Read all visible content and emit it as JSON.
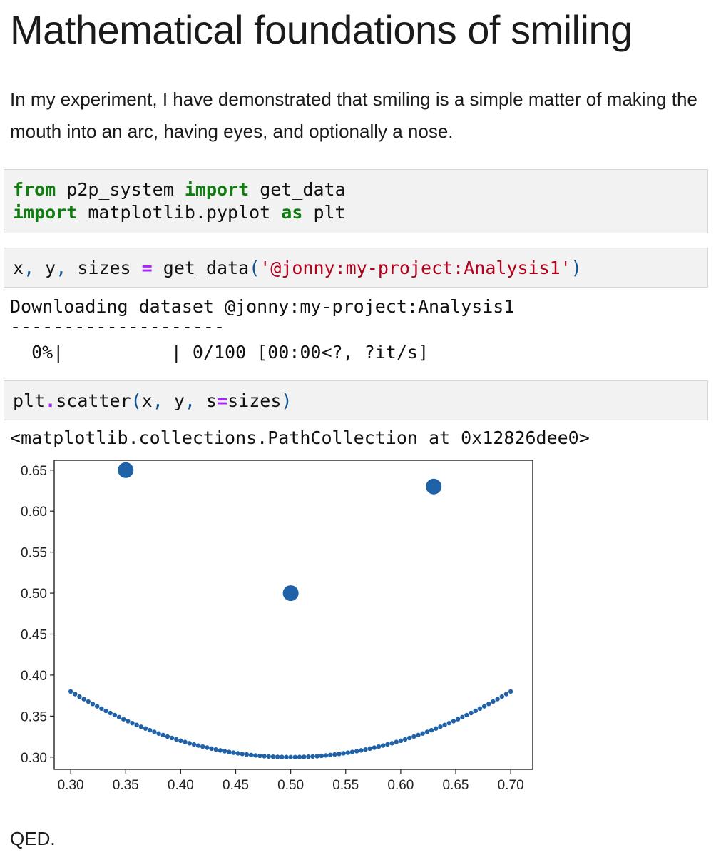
{
  "heading": "Mathematical foundations of smiling",
  "intro": "In my experiment, I have demonstrated that smiling is a simple matter of making the mouth into an arc, having eyes, and optionally a nose.",
  "cells": {
    "imports": {
      "line1": {
        "kw1": "from",
        "mod": " p2p_system ",
        "kw2": "import",
        "name": " get_data"
      },
      "line2": {
        "kw1": "import",
        "mod": " matplotlib.pyplot ",
        "kw2": "as",
        "name": " plt"
      }
    },
    "load": {
      "lhs1": "x",
      "comma1": ",",
      "lhs2": " y",
      "comma2": ",",
      "lhs3": " sizes ",
      "eq": "=",
      "fn": " get_data",
      "lparen": "(",
      "arg": "'@jonny:my-project:Analysis1'",
      "rparen": ")"
    },
    "scatter": {
      "obj": "plt",
      "dot": ".",
      "fn": "scatter",
      "lparen": "(",
      "a1": "x",
      "c1": ",",
      "a2": " y",
      "c2": ",",
      "kw": " s",
      "eq": "=",
      "a3": "sizes",
      "rparen": ")"
    }
  },
  "outputs": {
    "download_line": "Downloading dataset @jonny:my-project:Analysis1",
    "separator": "--------------------",
    "progress": "  0%|          | 0/100 [00:00<?, ?it/s]",
    "progress_value": 0,
    "repr": "<matplotlib.collections.PathCollection at 0x12826dee0>"
  },
  "chart_data": {
    "type": "scatter",
    "xlim": [
      0.285,
      0.72
    ],
    "ylim": [
      0.285,
      0.662
    ],
    "xticks": [
      "0.30",
      "0.35",
      "0.40",
      "0.45",
      "0.50",
      "0.55",
      "0.60",
      "0.65",
      "0.70"
    ],
    "yticks": [
      "0.30",
      "0.35",
      "0.40",
      "0.45",
      "0.50",
      "0.55",
      "0.60",
      "0.65"
    ],
    "color": "#1f62a8",
    "grid": false,
    "points": [
      {
        "x": 0.35,
        "y": 0.65,
        "size": "large"
      },
      {
        "x": 0.63,
        "y": 0.63,
        "size": "large"
      },
      {
        "x": 0.5,
        "y": 0.5,
        "size": "large"
      }
    ],
    "arc": {
      "x_start": 0.3,
      "x_end": 0.7,
      "vertex_x": 0.5,
      "vertex_y": 0.3,
      "end_y": 0.38,
      "count": 101,
      "size": "small"
    }
  },
  "closing": "QED."
}
